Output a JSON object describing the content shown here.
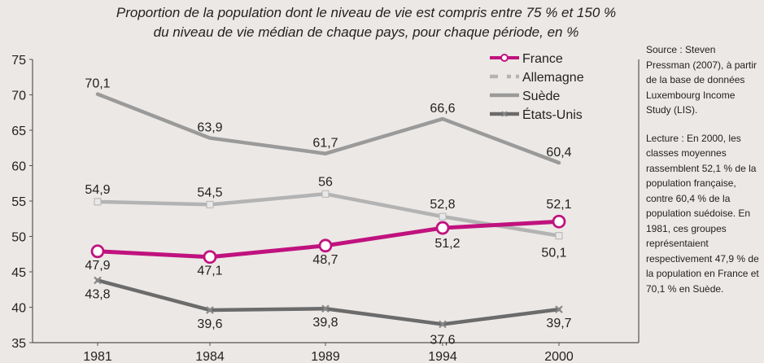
{
  "chart_data": {
    "type": "line",
    "title_line1": "Proportion de la population dont le niveau de vie est compris entre 75 % et 150 %",
    "title_line2": "du niveau de vie médian de chaque pays, pour chaque période, en %",
    "categories": [
      "1981",
      "1984",
      "1989",
      "1994",
      "2000"
    ],
    "ylim": [
      35,
      75
    ],
    "yticks": [
      35,
      40,
      45,
      50,
      55,
      60,
      65,
      70,
      75
    ],
    "grid": false,
    "legend_position": "top-right",
    "series": [
      {
        "name": "France",
        "values": [
          47.9,
          47.1,
          48.7,
          51.2,
          52.1
        ],
        "labels": [
          "47,9",
          "47,1",
          "48,7",
          "51,2",
          "52,1"
        ],
        "color": "#c0127e",
        "marker": "circle"
      },
      {
        "name": "Allemagne",
        "values": [
          54.9,
          54.5,
          56.0,
          52.8,
          50.1
        ],
        "labels": [
          "54,9",
          "54,5",
          "56",
          "52,8",
          "50,1"
        ],
        "color": "#b3b3b3",
        "marker": "square"
      },
      {
        "name": "Suède",
        "values": [
          70.1,
          63.9,
          61.7,
          66.6,
          60.4
        ],
        "labels": [
          "70,1",
          "63,9",
          "61,7",
          "66,6",
          "60,4"
        ],
        "color": "#9a9a9a",
        "marker": "none"
      },
      {
        "name": "États-Unis",
        "values": [
          43.8,
          39.6,
          39.8,
          37.6,
          39.7
        ],
        "labels": [
          "43,8",
          "39,6",
          "39,8",
          "37,6",
          "39,7"
        ],
        "color": "#6b6b6b",
        "marker": "x"
      }
    ]
  },
  "side_note": {
    "source": "Source : Steven Pressman (2007), à partir de la base de données Luxembourg Income Study (LIS).",
    "lecture": "Lecture : En 2000, les classes moyennes rassemblent 52,1 % de la population française, contre 60,4 % de la population suédoise. En 1981, ces groupes représentaient respectivement 47,9 % de la population en France et 70,1 % en Suède."
  }
}
